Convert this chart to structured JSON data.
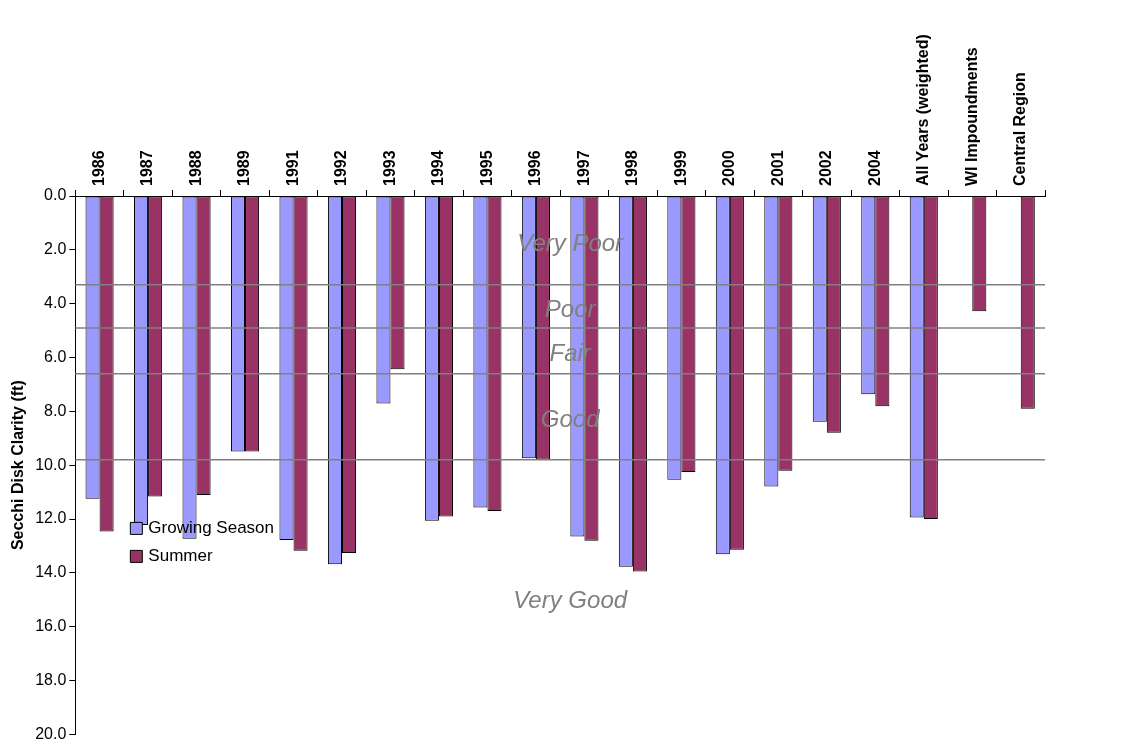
{
  "chart_data": {
    "type": "bar",
    "categories": [
      "1986",
      "1987",
      "1988",
      "1989",
      "1991",
      "1992",
      "1993",
      "1994",
      "1995",
      "1996",
      "1997",
      "1998",
      "1999",
      "2000",
      "2001",
      "2002",
      "2004",
      "All Years (weighted)",
      "WI Impoundments",
      "Central Region"
    ],
    "series": [
      {
        "name": "Growing Season",
        "color": "#9999ff",
        "values": [
          11.25,
          12.22,
          12.73,
          9.49,
          12.78,
          13.68,
          7.71,
          12.06,
          11.57,
          9.74,
          12.65,
          13.77,
          10.54,
          13.31,
          10.79,
          8.39,
          7.36,
          11.94,
          null,
          null
        ]
      },
      {
        "name": "Summer",
        "color": "#993366",
        "values": [
          12.46,
          11.16,
          11.11,
          9.49,
          13.18,
          13.26,
          6.44,
          11.91,
          11.7,
          9.79,
          12.81,
          13.95,
          10.25,
          13.14,
          10.21,
          8.79,
          7.81,
          12.0,
          4.28,
          7.9
        ]
      }
    ],
    "ylabel": "Secchi Disk Clarity (ft)",
    "ylim": [
      20,
      0
    ],
    "yticks": [
      {
        "value": 0,
        "label": "0.0"
      },
      {
        "value": 2,
        "label": "2.0"
      },
      {
        "value": 4,
        "label": "4.0"
      },
      {
        "value": 6,
        "label": "6.0"
      },
      {
        "value": 8,
        "label": "8.0"
      },
      {
        "value": 10,
        "label": "10.0"
      },
      {
        "value": 12,
        "label": "12.0"
      },
      {
        "value": 14,
        "label": "14.0"
      },
      {
        "value": 16,
        "label": "16.0"
      },
      {
        "value": 18,
        "label": "18.0"
      },
      {
        "value": 20,
        "label": "20.0"
      }
    ],
    "ref_lines": [
      {
        "axis": "y",
        "value": 3.3,
        "color": "#808080"
      },
      {
        "axis": "y",
        "value": 4.9,
        "color": "#808080"
      },
      {
        "axis": "y",
        "value": 6.6,
        "color": "#808080"
      },
      {
        "axis": "y",
        "value": 9.8,
        "color": "#808080"
      }
    ],
    "annotations": [
      "Very Poor",
      "Poor",
      "Fair",
      "Good",
      "Very Good"
    ],
    "grid": false,
    "legend": "bottom left"
  }
}
